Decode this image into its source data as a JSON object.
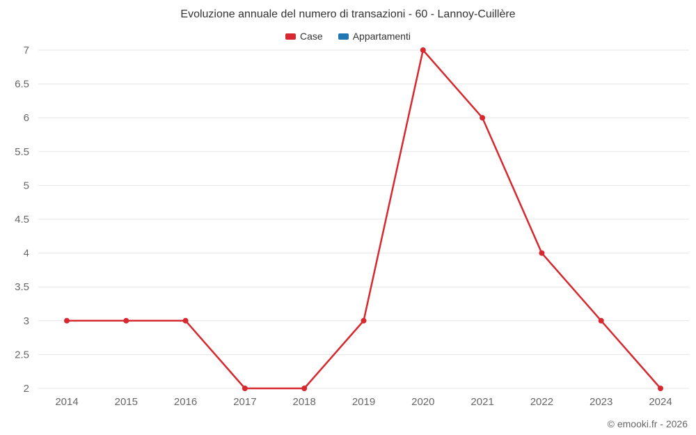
{
  "header": {
    "title": "Evoluzione annuale del numero di transazioni - 60 - Lannoy-Cuillère"
  },
  "legend": {
    "items": [
      {
        "label": "Case",
        "color": "#d7282f"
      },
      {
        "label": "Appartamenti",
        "color": "#2077b4"
      }
    ]
  },
  "footer": {
    "credit": "© emooki.fr - 2026"
  },
  "colors": {
    "grid": "#e6e6e6",
    "tick_text": "#666666",
    "title_text": "#333333",
    "series_case": "#d7282f",
    "series_appartamenti": "#2077b4"
  },
  "chart_data": {
    "type": "line",
    "title": "Evoluzione annuale del numero di transazioni - 60 - Lannoy-Cuillère",
    "x": [
      2014,
      2015,
      2016,
      2017,
      2018,
      2019,
      2020,
      2021,
      2022,
      2023,
      2024
    ],
    "series": [
      {
        "name": "Case",
        "color": "#d7282f",
        "values": [
          3,
          3,
          3,
          2,
          2,
          3,
          7,
          6,
          4,
          3,
          2
        ]
      },
      {
        "name": "Appartamenti",
        "color": "#2077b4",
        "values": []
      }
    ],
    "xlabel": "",
    "ylabel": "",
    "ylim": [
      2,
      7
    ],
    "ytick_step": 0.5,
    "yticks": [
      2,
      2.5,
      3,
      3.5,
      4,
      4.5,
      5,
      5.5,
      6,
      6.5,
      7
    ],
    "grid": true,
    "legend_position": "top",
    "markers": true
  }
}
